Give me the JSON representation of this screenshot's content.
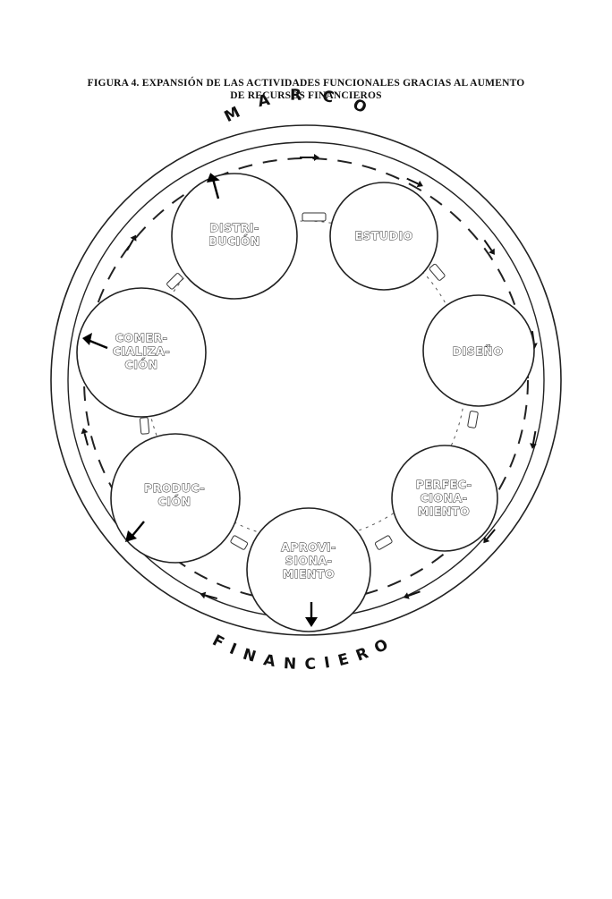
{
  "figure": {
    "title_line1": "FIGURA 4.  EXPANSIÓN DE LAS ACTIVIDADES FUNCIONALES GRACIAS AL AUMENTO",
    "title_line2": "DE RECURSOS FINANCIEROS"
  },
  "frame": {
    "top_word": "MARCO",
    "bottom_word": "FINANCIERO"
  },
  "nodes": [
    {
      "id": "estudio",
      "lines": [
        "ESTUDIO"
      ]
    },
    {
      "id": "diseno",
      "lines": [
        "DISEÑO"
      ]
    },
    {
      "id": "perfeccionamiento",
      "lines": [
        "PERFEC-",
        "CIONA-",
        "MIENTO"
      ]
    },
    {
      "id": "aprovisionamiento",
      "lines": [
        "APROVI-",
        "SIONA-",
        "MIENTO"
      ]
    },
    {
      "id": "produccion",
      "lines": [
        "PRODUC-",
        "CIÓN"
      ]
    },
    {
      "id": "comercializacion",
      "lines": [
        "COMER-",
        "CIALIZA-",
        "CIÓN"
      ]
    },
    {
      "id": "distribucion",
      "lines": [
        "DISTRI-",
        "BUCIÓN"
      ]
    }
  ]
}
